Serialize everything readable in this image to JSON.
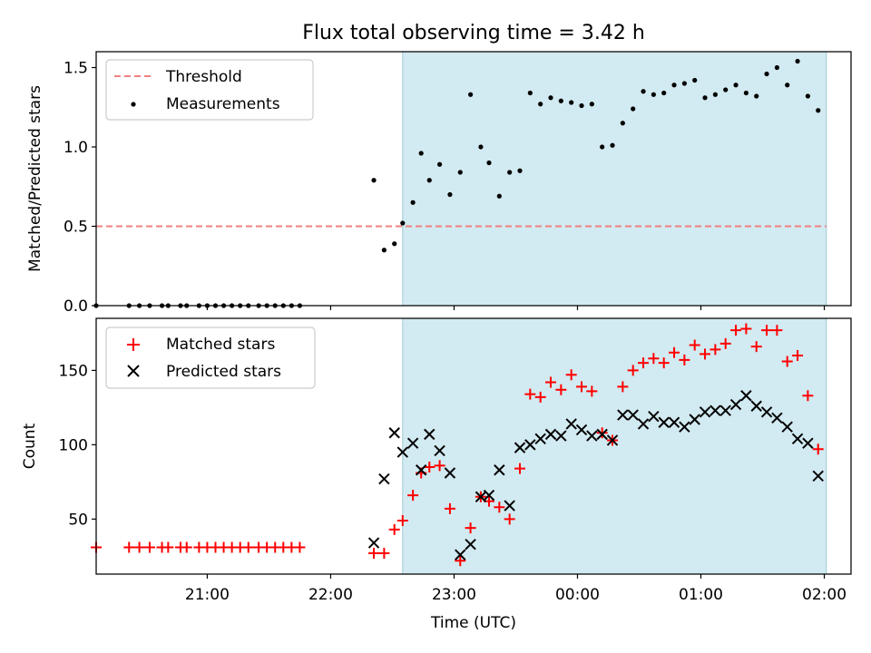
{
  "title": "Flux total observing time = 3.42 h",
  "colors": {
    "shade": "#add8e6",
    "threshold": "#f08080",
    "measurements": "#000000",
    "matched": "#ff0000",
    "predicted": "#000000"
  },
  "chart_data": [
    {
      "type": "scatter",
      "panel": "top",
      "ylabel": "Matched/Predicted stars",
      "ylim": [
        0,
        1.6
      ],
      "yticks": [
        0.0,
        0.5,
        1.0,
        1.5
      ],
      "ytick_labels": [
        "0.0",
        "0.5",
        "1.0",
        "1.5"
      ],
      "legend_position": "top-left",
      "shaded_region": [
        "22:35",
        "02:01"
      ],
      "threshold": {
        "name": "Threshold",
        "value": 0.5,
        "x_range": [
          "20:06",
          "02:01"
        ],
        "style": "dashed"
      },
      "series": [
        {
          "name": "Measurements",
          "marker": "dot",
          "points": [
            [
              "20:06",
              0.0
            ],
            [
              "20:22",
              0.0
            ],
            [
              "20:27",
              0.0
            ],
            [
              "20:32",
              0.0
            ],
            [
              "20:38",
              0.0
            ],
            [
              "20:41",
              0.0
            ],
            [
              "20:47",
              0.0
            ],
            [
              "20:50",
              0.0
            ],
            [
              "20:56",
              0.0
            ],
            [
              "21:00",
              0.0
            ],
            [
              "21:04",
              0.0
            ],
            [
              "21:08",
              0.0
            ],
            [
              "21:12",
              0.0
            ],
            [
              "21:16",
              0.0
            ],
            [
              "21:20",
              0.0
            ],
            [
              "21:25",
              0.0
            ],
            [
              "21:29",
              0.0
            ],
            [
              "21:33",
              0.0
            ],
            [
              "21:37",
              0.0
            ],
            [
              "21:41",
              0.0
            ],
            [
              "21:45",
              0.0
            ],
            [
              "22:21",
              0.79
            ],
            [
              "22:26",
              0.35
            ],
            [
              "22:31",
              0.39
            ],
            [
              "22:35",
              0.52
            ],
            [
              "22:40",
              0.65
            ],
            [
              "22:44",
              0.96
            ],
            [
              "22:48",
              0.79
            ],
            [
              "22:53",
              0.89
            ],
            [
              "22:58",
              0.7
            ],
            [
              "23:03",
              0.84
            ],
            [
              "23:08",
              1.33
            ],
            [
              "23:13",
              1.0
            ],
            [
              "23:17",
              0.9
            ],
            [
              "23:22",
              0.69
            ],
            [
              "23:27",
              0.84
            ],
            [
              "23:32",
              0.85
            ],
            [
              "23:37",
              1.34
            ],
            [
              "23:42",
              1.27
            ],
            [
              "23:47",
              1.31
            ],
            [
              "23:52",
              1.29
            ],
            [
              "23:57",
              1.28
            ],
            [
              "00:02",
              1.26
            ],
            [
              "00:07",
              1.27
            ],
            [
              "00:12",
              1.0
            ],
            [
              "00:17",
              1.01
            ],
            [
              "00:22",
              1.15
            ],
            [
              "00:27",
              1.24
            ],
            [
              "00:32",
              1.35
            ],
            [
              "00:37",
              1.33
            ],
            [
              "00:42",
              1.34
            ],
            [
              "00:47",
              1.39
            ],
            [
              "00:52",
              1.4
            ],
            [
              "00:57",
              1.42
            ],
            [
              "01:02",
              1.31
            ],
            [
              "01:07",
              1.33
            ],
            [
              "01:12",
              1.36
            ],
            [
              "01:17",
              1.39
            ],
            [
              "01:22",
              1.34
            ],
            [
              "01:27",
              1.32
            ],
            [
              "01:32",
              1.46
            ],
            [
              "01:37",
              1.5
            ],
            [
              "01:42",
              1.39
            ],
            [
              "01:47",
              1.54
            ],
            [
              "01:52",
              1.32
            ],
            [
              "01:57",
              1.23
            ]
          ]
        }
      ]
    },
    {
      "type": "scatter",
      "panel": "bottom",
      "xlabel": "Time (UTC)",
      "ylabel": "Count",
      "xlim": [
        "20:06",
        "02:13"
      ],
      "xticks": [
        "21:00",
        "22:00",
        "23:00",
        "00:00",
        "01:00",
        "02:00"
      ],
      "ylim": [
        13,
        185
      ],
      "yticks": [
        50,
        100,
        150
      ],
      "ytick_labels": [
        "50",
        "100",
        "150"
      ],
      "legend_position": "top-left",
      "shaded_region": [
        "22:35",
        "02:01"
      ],
      "series": [
        {
          "name": "Matched stars",
          "marker": "plus",
          "points": [
            [
              "20:06",
              31
            ],
            [
              "20:22",
              31
            ],
            [
              "20:27",
              31
            ],
            [
              "20:32",
              31
            ],
            [
              "20:38",
              31
            ],
            [
              "20:41",
              31
            ],
            [
              "20:47",
              31
            ],
            [
              "20:50",
              31
            ],
            [
              "20:56",
              31
            ],
            [
              "21:00",
              31
            ],
            [
              "21:04",
              31
            ],
            [
              "21:08",
              31
            ],
            [
              "21:12",
              31
            ],
            [
              "21:16",
              31
            ],
            [
              "21:20",
              31
            ],
            [
              "21:25",
              31
            ],
            [
              "21:29",
              31
            ],
            [
              "21:33",
              31
            ],
            [
              "21:37",
              31
            ],
            [
              "21:41",
              31
            ],
            [
              "21:45",
              31
            ],
            [
              "22:21",
              27
            ],
            [
              "22:26",
              27
            ],
            [
              "22:31",
              43
            ],
            [
              "22:35",
              49
            ],
            [
              "22:40",
              66
            ],
            [
              "22:44",
              81
            ],
            [
              "22:48",
              85
            ],
            [
              "22:53",
              86
            ],
            [
              "22:58",
              57
            ],
            [
              "23:03",
              22
            ],
            [
              "23:08",
              44
            ],
            [
              "23:13",
              65
            ],
            [
              "23:17",
              62
            ],
            [
              "23:22",
              58
            ],
            [
              "23:27",
              50
            ],
            [
              "23:32",
              84
            ],
            [
              "23:37",
              134
            ],
            [
              "23:42",
              132
            ],
            [
              "23:47",
              142
            ],
            [
              "23:52",
              137
            ],
            [
              "23:57",
              147
            ],
            [
              "00:02",
              139
            ],
            [
              "00:07",
              136
            ],
            [
              "00:12",
              108
            ],
            [
              "00:17",
              103
            ],
            [
              "00:22",
              139
            ],
            [
              "00:27",
              150
            ],
            [
              "00:32",
              155
            ],
            [
              "00:37",
              158
            ],
            [
              "00:42",
              155
            ],
            [
              "00:47",
              162
            ],
            [
              "00:52",
              157
            ],
            [
              "00:57",
              167
            ],
            [
              "01:02",
              161
            ],
            [
              "01:07",
              164
            ],
            [
              "01:12",
              168
            ],
            [
              "01:17",
              177
            ],
            [
              "01:22",
              178
            ],
            [
              "01:27",
              166
            ],
            [
              "01:32",
              177
            ],
            [
              "01:37",
              177
            ],
            [
              "01:42",
              156
            ],
            [
              "01:47",
              160
            ],
            [
              "01:52",
              133
            ],
            [
              "01:57",
              97
            ]
          ]
        },
        {
          "name": "Predicted stars",
          "marker": "x",
          "points": [
            [
              "22:21",
              34
            ],
            [
              "22:26",
              77
            ],
            [
              "22:31",
              108
            ],
            [
              "22:35",
              95
            ],
            [
              "22:40",
              101
            ],
            [
              "22:44",
              83
            ],
            [
              "22:48",
              107
            ],
            [
              "22:53",
              96
            ],
            [
              "22:58",
              81
            ],
            [
              "23:03",
              26
            ],
            [
              "23:08",
              33
            ],
            [
              "23:13",
              65
            ],
            [
              "23:17",
              66
            ],
            [
              "23:22",
              83
            ],
            [
              "23:27",
              59
            ],
            [
              "23:32",
              98
            ],
            [
              "23:37",
              100
            ],
            [
              "23:42",
              104
            ],
            [
              "23:47",
              107
            ],
            [
              "23:52",
              106
            ],
            [
              "23:57",
              114
            ],
            [
              "00:02",
              110
            ],
            [
              "00:07",
              106
            ],
            [
              "00:12",
              107
            ],
            [
              "00:17",
              103
            ],
            [
              "00:22",
              120
            ],
            [
              "00:27",
              120
            ],
            [
              "00:32",
              114
            ],
            [
              "00:37",
              119
            ],
            [
              "00:42",
              115
            ],
            [
              "00:47",
              115
            ],
            [
              "00:52",
              112
            ],
            [
              "00:57",
              117
            ],
            [
              "01:02",
              122
            ],
            [
              "01:07",
              123
            ],
            [
              "01:12",
              123
            ],
            [
              "01:17",
              127
            ],
            [
              "01:22",
              133
            ],
            [
              "01:27",
              126
            ],
            [
              "01:32",
              122
            ],
            [
              "01:37",
              118
            ],
            [
              "01:42",
              112
            ],
            [
              "01:47",
              104
            ],
            [
              "01:52",
              101
            ],
            [
              "01:57",
              79
            ]
          ]
        }
      ]
    }
  ]
}
